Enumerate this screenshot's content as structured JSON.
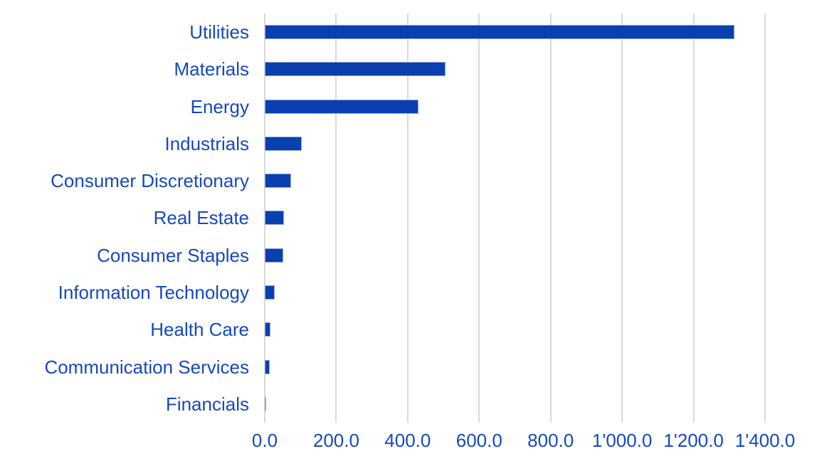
{
  "chart_data": {
    "type": "bar",
    "orientation": "horizontal",
    "title": "",
    "xlabel": "",
    "ylabel": "",
    "categories": [
      "Utilities",
      "Materials",
      "Energy",
      "Industrials",
      "Consumer Discretionary",
      "Real Estate",
      "Consumer Staples",
      "Information Technology",
      "Health Care",
      "Communication Services",
      "Financials"
    ],
    "values": [
      1314,
      505,
      430,
      104,
      74,
      54,
      52,
      27,
      16,
      14,
      4
    ],
    "xlim": [
      0,
      1400
    ],
    "x_tick_interval": 200,
    "x_tick_labels": [
      "0.0",
      "200.0",
      "400.0",
      "600.0",
      "800.0",
      "1'000.0",
      "1'200.0",
      "1'400.0"
    ],
    "grid": true,
    "legend": false,
    "colors": {
      "bar": "#0a3fb0",
      "bar_border": "#8fa6dd",
      "label_text": "#1648c0",
      "tick_text": "#1648c0",
      "gridline": "#d9d9d9",
      "background": "#ffffff"
    }
  }
}
